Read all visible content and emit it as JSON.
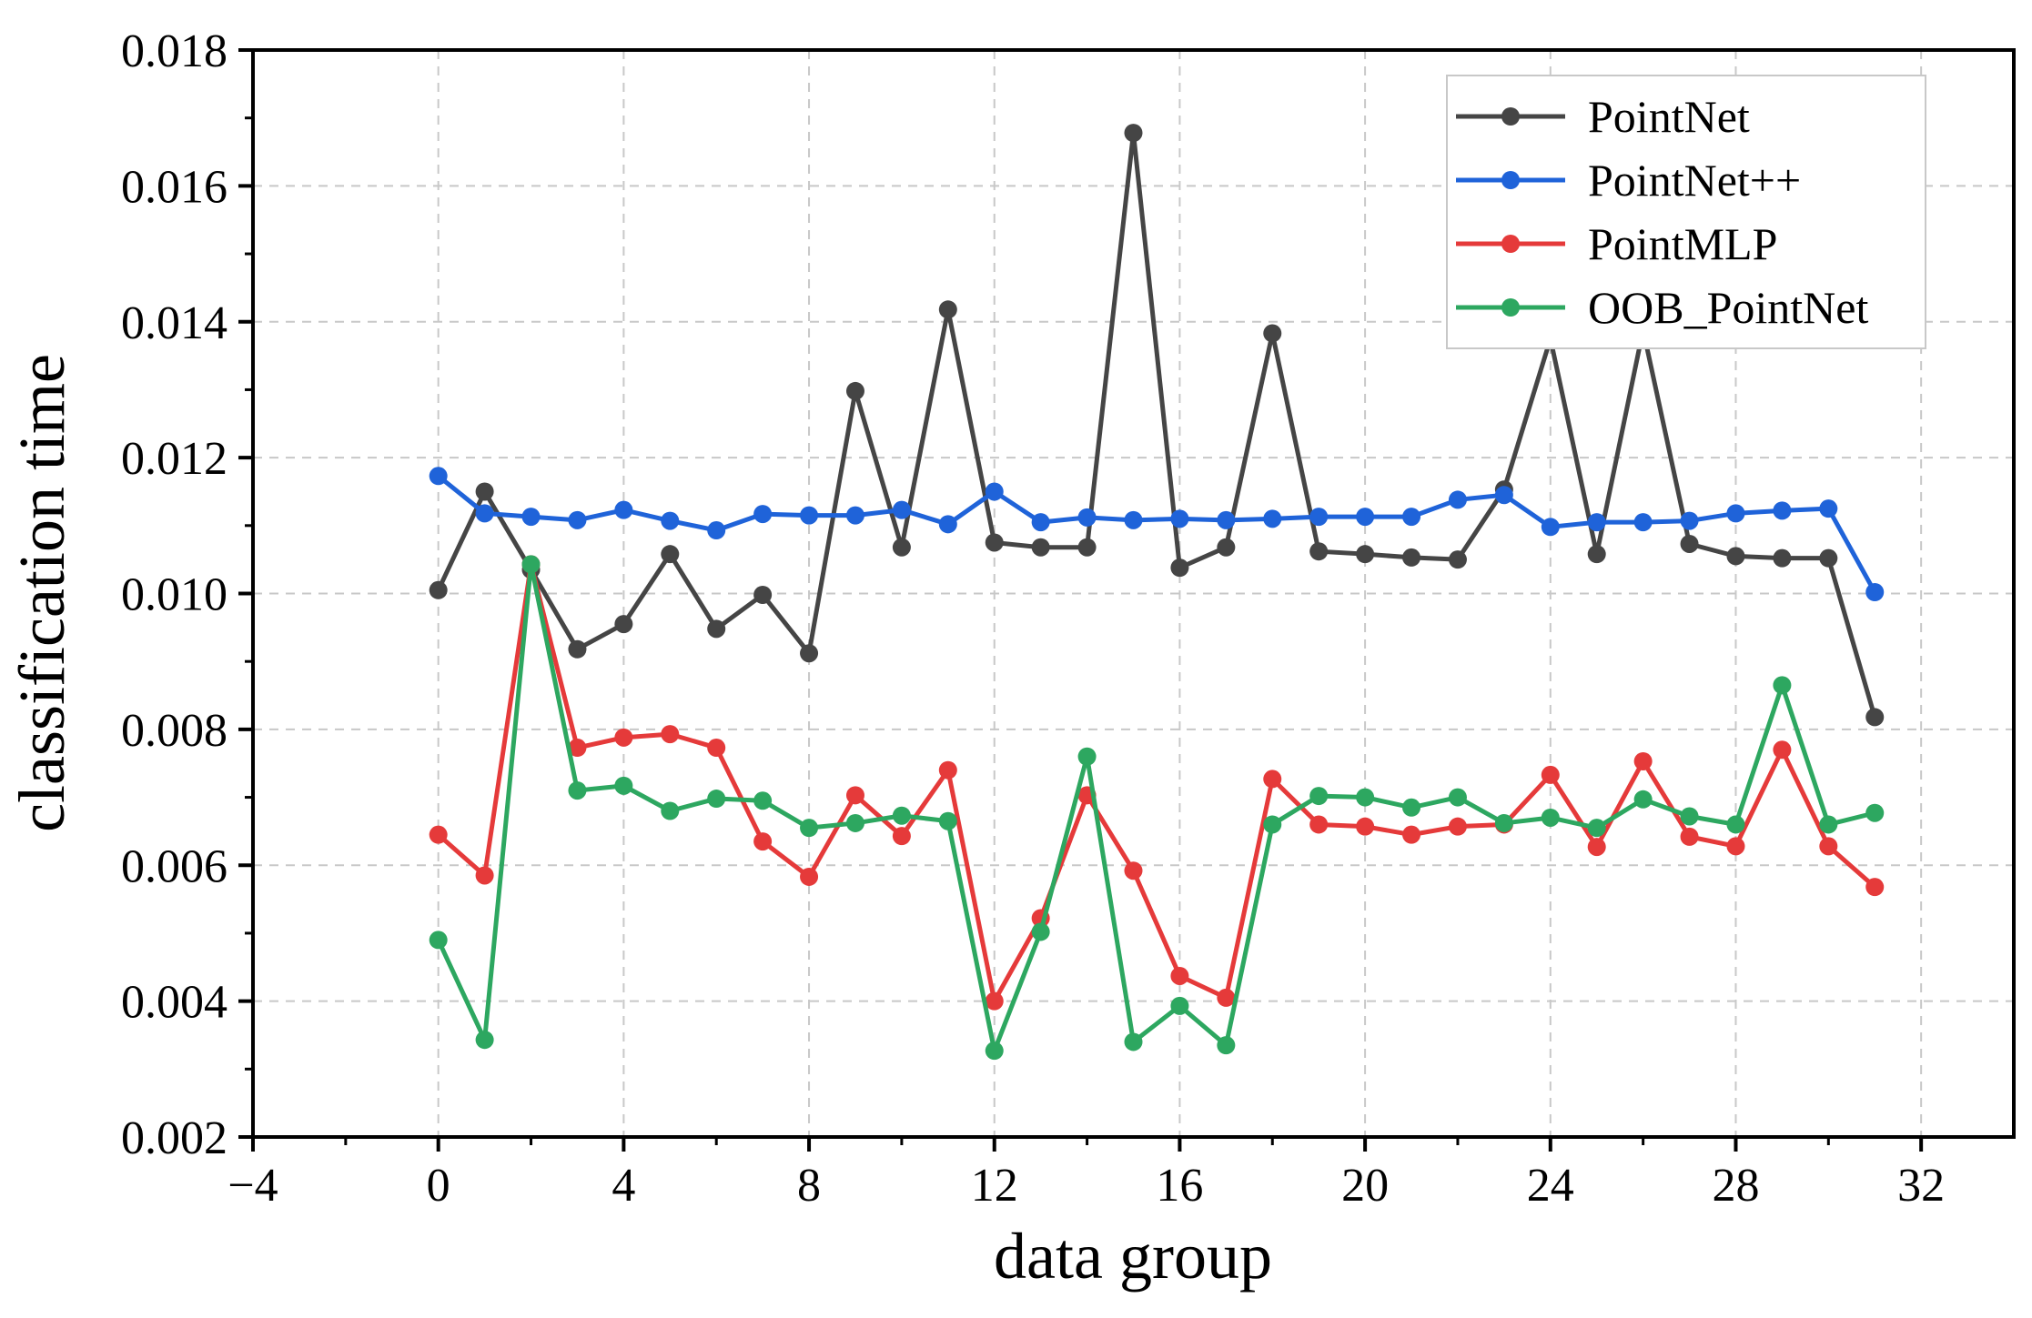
{
  "chart_data": {
    "type": "line",
    "title": "",
    "xlabel": "data group",
    "ylabel": "classification time",
    "xlim": [
      -4,
      34
    ],
    "ylim": [
      0.002,
      0.018
    ],
    "xticks": [
      -4,
      0,
      4,
      8,
      12,
      16,
      20,
      24,
      28,
      32
    ],
    "xtick_labels": [
      "−4",
      "0",
      "4",
      "8",
      "12",
      "16",
      "20",
      "24",
      "28",
      "32"
    ],
    "yticks": [
      0.002,
      0.004,
      0.006,
      0.008,
      0.01,
      0.012,
      0.014,
      0.016,
      0.018
    ],
    "ytick_labels": [
      "0.002",
      "0.004",
      "0.006",
      "0.008",
      "0.010",
      "0.012",
      "0.014",
      "0.016",
      "0.018"
    ],
    "grid": true,
    "legend_position": "top-right",
    "x": [
      0,
      1,
      2,
      3,
      4,
      5,
      6,
      7,
      8,
      9,
      10,
      11,
      12,
      13,
      14,
      15,
      16,
      17,
      18,
      19,
      20,
      21,
      22,
      23,
      24,
      25,
      26,
      27,
      28,
      29,
      30,
      31
    ],
    "series": [
      {
        "name": "PointNet",
        "color": "#454545",
        "values": [
          0.01005,
          0.0115,
          0.01035,
          0.00918,
          0.00955,
          0.01058,
          0.00948,
          0.00998,
          0.00912,
          0.01298,
          0.01068,
          0.01418,
          0.01075,
          0.01068,
          0.01068,
          0.01678,
          0.01038,
          0.01068,
          0.01383,
          0.01062,
          0.01058,
          0.01053,
          0.0105,
          0.01153,
          0.01375,
          0.01058,
          0.01388,
          0.01073,
          0.01055,
          0.01052,
          0.01052,
          0.00818
        ]
      },
      {
        "name": "PointNet++",
        "color": "#1f63d9",
        "values": [
          0.01173,
          0.01118,
          0.01113,
          0.01108,
          0.01123,
          0.01107,
          0.01093,
          0.01117,
          0.01115,
          0.01115,
          0.01123,
          0.01102,
          0.0115,
          0.01105,
          0.01112,
          0.01108,
          0.0111,
          0.01108,
          0.0111,
          0.01113,
          0.01113,
          0.01113,
          0.01138,
          0.01145,
          0.01098,
          0.01105,
          0.01105,
          0.01107,
          0.01118,
          0.01122,
          0.01125,
          0.01002
        ]
      },
      {
        "name": "PointMLP",
        "color": "#e53a3a",
        "values": [
          0.00645,
          0.00585,
          0.01043,
          0.00773,
          0.00788,
          0.00793,
          0.00773,
          0.00635,
          0.00583,
          0.00703,
          0.00643,
          0.0074,
          0.004,
          0.00522,
          0.00703,
          0.00592,
          0.00437,
          0.00405,
          0.00727,
          0.0066,
          0.00657,
          0.00645,
          0.00657,
          0.0066,
          0.00733,
          0.00627,
          0.00753,
          0.00642,
          0.00628,
          0.0077,
          0.00628,
          0.00568
        ]
      },
      {
        "name": "OOB_PointNet",
        "color": "#2da760",
        "values": [
          0.0049,
          0.00343,
          0.01043,
          0.0071,
          0.00717,
          0.0068,
          0.00698,
          0.00695,
          0.00655,
          0.00662,
          0.00673,
          0.00665,
          0.00327,
          0.00502,
          0.0076,
          0.0034,
          0.00393,
          0.00335,
          0.0066,
          0.00702,
          0.007,
          0.00685,
          0.007,
          0.00662,
          0.0067,
          0.00655,
          0.00697,
          0.00672,
          0.0066,
          0.00865,
          0.0066,
          0.00677
        ]
      }
    ]
  }
}
